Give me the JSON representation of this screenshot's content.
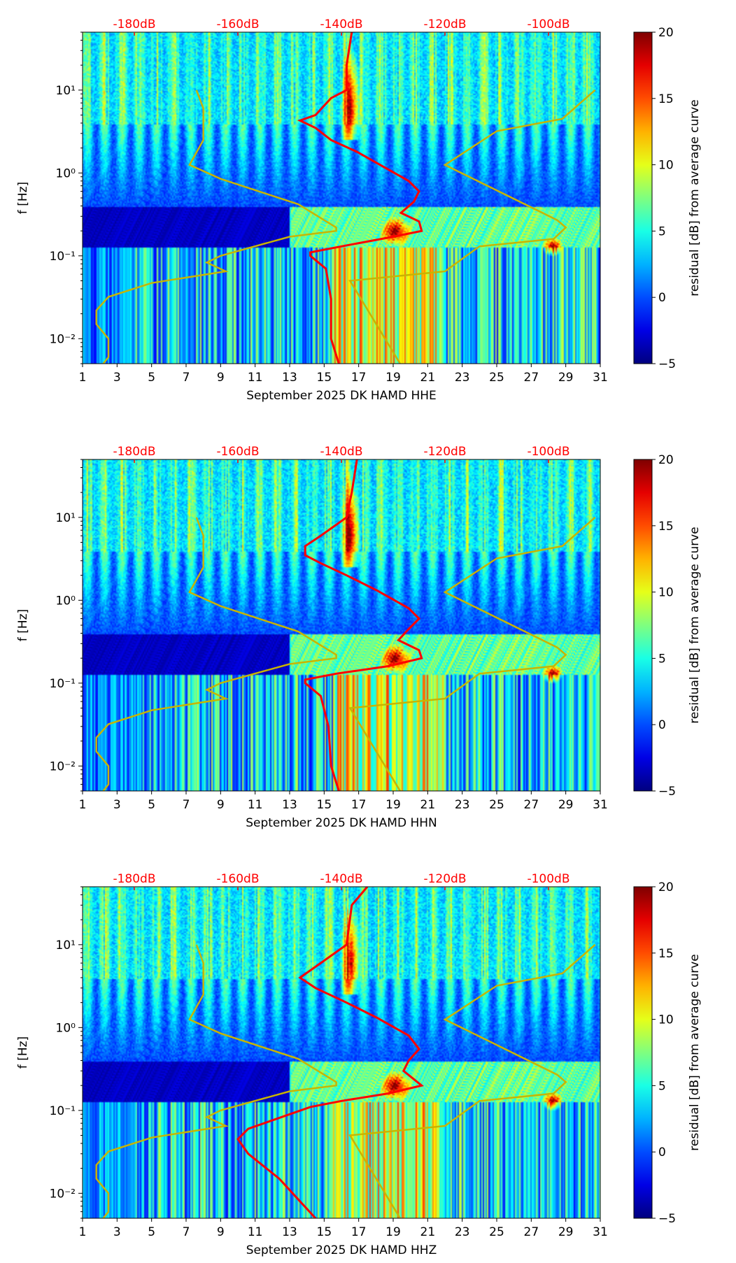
{
  "colors": {
    "avg_curve": "#ff0000",
    "noise_model": "#c8b400",
    "top_labels": "#ff0000"
  },
  "chart_data": [
    {
      "type": "heatmap",
      "channel": "HHE",
      "xlabel": "September 2025 DK HAMD  HHE",
      "ylabel": "f [Hz]",
      "x_ticks": [
        "1",
        "3",
        "5",
        "7",
        "9",
        "11",
        "13",
        "15",
        "17",
        "19",
        "21",
        "23",
        "25",
        "27",
        "29",
        "31"
      ],
      "xlim": [
        1,
        31
      ],
      "y_ticks": [
        "10⁻²",
        "10⁻¹",
        "10⁰",
        "10¹"
      ],
      "ylim": [
        0.005,
        50
      ],
      "y_scale": "log",
      "top_ticks": [
        "-180dB",
        "-160dB",
        "-140dB",
        "-120dB",
        "-100dB"
      ],
      "top_tick_days": [
        4,
        10,
        16,
        22,
        28
      ],
      "colorbar": {
        "label": "residual [dB] from average curve",
        "ticks": [
          "−5",
          "0",
          "5",
          "10",
          "15",
          "20"
        ],
        "range": [
          -5,
          20
        ],
        "colormap": "jet"
      },
      "avg_curve_db_vs_f": [
        [
          -138,
          50
        ],
        [
          -139,
          20
        ],
        [
          -139,
          10
        ],
        [
          -142,
          8
        ],
        [
          -145,
          5
        ],
        [
          -148,
          4.3
        ],
        [
          -145,
          3.5
        ],
        [
          -142,
          2.5
        ],
        [
          -137,
          1.8
        ],
        [
          -132,
          1.2
        ],
        [
          -127,
          0.8
        ],
        [
          -125,
          0.6
        ],
        [
          -126,
          0.45
        ],
        [
          -128.5,
          0.33
        ],
        [
          -125,
          0.26
        ],
        [
          -124.5,
          0.2
        ],
        [
          -130,
          0.17
        ],
        [
          -140,
          0.13
        ],
        [
          -146,
          0.11
        ],
        [
          -146,
          0.1
        ],
        [
          -143,
          0.07
        ],
        [
          -142,
          0.03
        ],
        [
          -142,
          0.01
        ],
        [
          -140.5,
          0.005
        ]
      ],
      "noise_low_day_vs_f": [
        [
          7.6,
          10
        ],
        [
          8,
          6
        ],
        [
          8,
          2.5
        ],
        [
          7.2,
          1.25
        ],
        [
          9,
          0.85
        ],
        [
          13.5,
          0.42
        ],
        [
          15.7,
          0.22
        ],
        [
          15.7,
          0.2
        ],
        [
          13,
          0.17
        ],
        [
          9,
          0.1
        ],
        [
          8.2,
          0.083
        ],
        [
          9.3,
          0.065
        ],
        [
          5,
          0.047
        ],
        [
          2.5,
          0.032
        ],
        [
          1.8,
          0.022
        ],
        [
          1.8,
          0.015
        ],
        [
          2.5,
          0.01
        ],
        [
          2.5,
          0.006
        ],
        [
          2.2,
          0.005
        ]
      ],
      "noise_high_day_vs_f": [
        [
          30.7,
          10
        ],
        [
          28.8,
          4.5
        ],
        [
          25,
          3.2
        ],
        [
          22,
          1.25
        ],
        [
          28.5,
          0.27
        ],
        [
          29,
          0.22
        ],
        [
          28.3,
          0.16
        ],
        [
          24,
          0.13
        ],
        [
          22,
          0.065
        ],
        [
          16.5,
          0.05
        ],
        [
          19.4,
          0.005
        ]
      ]
    },
    {
      "type": "heatmap",
      "channel": "HHN",
      "xlabel": "September 2025 DK HAMD  HHN",
      "ylabel": "f [Hz]",
      "x_ticks": [
        "1",
        "3",
        "5",
        "7",
        "9",
        "11",
        "13",
        "15",
        "17",
        "19",
        "21",
        "23",
        "25",
        "27",
        "29",
        "31"
      ],
      "xlim": [
        1,
        31
      ],
      "y_ticks": [
        "10⁻²",
        "10⁻¹",
        "10⁰",
        "10¹"
      ],
      "ylim": [
        0.005,
        50
      ],
      "y_scale": "log",
      "top_ticks": [
        "-180dB",
        "-160dB",
        "-140dB",
        "-120dB",
        "-100dB"
      ],
      "top_tick_days": [
        4,
        10,
        16,
        22,
        28
      ],
      "colorbar": {
        "label": "residual [dB] from average curve",
        "ticks": [
          "−5",
          "0",
          "5",
          "10",
          "15",
          "20"
        ],
        "range": [
          -5,
          20
        ],
        "colormap": "jet"
      },
      "avg_curve_db_vs_f": [
        [
          -137,
          50
        ],
        [
          -138,
          20
        ],
        [
          -139,
          10
        ],
        [
          -144,
          6
        ],
        [
          -147,
          4.5
        ],
        [
          -147,
          3.5
        ],
        [
          -144,
          2.8
        ],
        [
          -139,
          2
        ],
        [
          -133,
          1.3
        ],
        [
          -127,
          0.8
        ],
        [
          -125,
          0.6
        ],
        [
          -127,
          0.45
        ],
        [
          -129,
          0.33
        ],
        [
          -125,
          0.25
        ],
        [
          -124.5,
          0.2
        ],
        [
          -131,
          0.16
        ],
        [
          -141,
          0.13
        ],
        [
          -147,
          0.11
        ],
        [
          -147,
          0.1
        ],
        [
          -144,
          0.07
        ],
        [
          -142.5,
          0.03
        ],
        [
          -142,
          0.01
        ],
        [
          -140.5,
          0.005
        ]
      ],
      "noise_low_day_vs_f": [
        [
          7.6,
          10
        ],
        [
          8,
          6
        ],
        [
          8,
          2.5
        ],
        [
          7.2,
          1.25
        ],
        [
          9,
          0.85
        ],
        [
          13.5,
          0.42
        ],
        [
          15.7,
          0.22
        ],
        [
          15.7,
          0.2
        ],
        [
          13,
          0.17
        ],
        [
          9,
          0.1
        ],
        [
          8.2,
          0.083
        ],
        [
          9.3,
          0.065
        ],
        [
          5,
          0.047
        ],
        [
          2.5,
          0.032
        ],
        [
          1.8,
          0.022
        ],
        [
          1.8,
          0.015
        ],
        [
          2.5,
          0.01
        ],
        [
          2.5,
          0.006
        ],
        [
          2.2,
          0.005
        ]
      ],
      "noise_high_day_vs_f": [
        [
          30.7,
          10
        ],
        [
          28.8,
          4.5
        ],
        [
          25,
          3.2
        ],
        [
          22,
          1.25
        ],
        [
          28.5,
          0.27
        ],
        [
          29,
          0.22
        ],
        [
          28.3,
          0.16
        ],
        [
          24,
          0.13
        ],
        [
          22,
          0.065
        ],
        [
          16.5,
          0.05
        ],
        [
          19.4,
          0.005
        ]
      ]
    },
    {
      "type": "heatmap",
      "channel": "HHZ",
      "xlabel": "September 2025 DK HAMD  HHZ",
      "ylabel": "f [Hz]",
      "x_ticks": [
        "1",
        "3",
        "5",
        "7",
        "9",
        "11",
        "13",
        "15",
        "17",
        "19",
        "21",
        "23",
        "25",
        "27",
        "29",
        "31"
      ],
      "xlim": [
        1,
        31
      ],
      "y_ticks": [
        "10⁻²",
        "10⁻¹",
        "10⁰",
        "10¹"
      ],
      "ylim": [
        0.005,
        50
      ],
      "y_scale": "log",
      "top_ticks": [
        "-180dB",
        "-160dB",
        "-140dB",
        "-120dB",
        "-100dB"
      ],
      "top_tick_days": [
        4,
        10,
        16,
        22,
        28
      ],
      "colorbar": {
        "label": "residual [dB] from average curve",
        "ticks": [
          "−5",
          "0",
          "5",
          "10",
          "15",
          "20"
        ],
        "range": [
          -5,
          20
        ],
        "colormap": "jet"
      },
      "avg_curve_db_vs_f": [
        [
          -135,
          50
        ],
        [
          -138,
          30
        ],
        [
          -139,
          10
        ],
        [
          -144,
          6
        ],
        [
          -148,
          4
        ],
        [
          -145,
          3
        ],
        [
          -139,
          2
        ],
        [
          -133,
          1.3
        ],
        [
          -127,
          0.8
        ],
        [
          -125,
          0.55
        ],
        [
          -127,
          0.4
        ],
        [
          -128,
          0.3
        ],
        [
          -124.5,
          0.2
        ],
        [
          -131,
          0.16
        ],
        [
          -140,
          0.13
        ],
        [
          -146,
          0.11
        ],
        [
          -150,
          0.09
        ],
        [
          -158,
          0.06
        ],
        [
          -160,
          0.045
        ],
        [
          -158,
          0.03
        ],
        [
          -152,
          0.015
        ],
        [
          -148,
          0.008
        ],
        [
          -145,
          0.005
        ]
      ],
      "noise_low_day_vs_f": [
        [
          7.6,
          10
        ],
        [
          8,
          6
        ],
        [
          8,
          2.5
        ],
        [
          7.2,
          1.25
        ],
        [
          9,
          0.85
        ],
        [
          13.5,
          0.42
        ],
        [
          15.7,
          0.22
        ],
        [
          15.7,
          0.2
        ],
        [
          13,
          0.17
        ],
        [
          9,
          0.1
        ],
        [
          8.2,
          0.083
        ],
        [
          9.3,
          0.065
        ],
        [
          5,
          0.047
        ],
        [
          2.5,
          0.032
        ],
        [
          1.8,
          0.022
        ],
        [
          1.8,
          0.015
        ],
        [
          2.5,
          0.01
        ],
        [
          2.5,
          0.006
        ],
        [
          2.2,
          0.005
        ]
      ],
      "noise_high_day_vs_f": [
        [
          30.7,
          10
        ],
        [
          28.8,
          4.5
        ],
        [
          25,
          3.2
        ],
        [
          22,
          1.25
        ],
        [
          28.5,
          0.27
        ],
        [
          29,
          0.22
        ],
        [
          28.3,
          0.16
        ],
        [
          24,
          0.13
        ],
        [
          22,
          0.065
        ],
        [
          16.5,
          0.05
        ],
        [
          19.4,
          0.005
        ]
      ]
    }
  ]
}
